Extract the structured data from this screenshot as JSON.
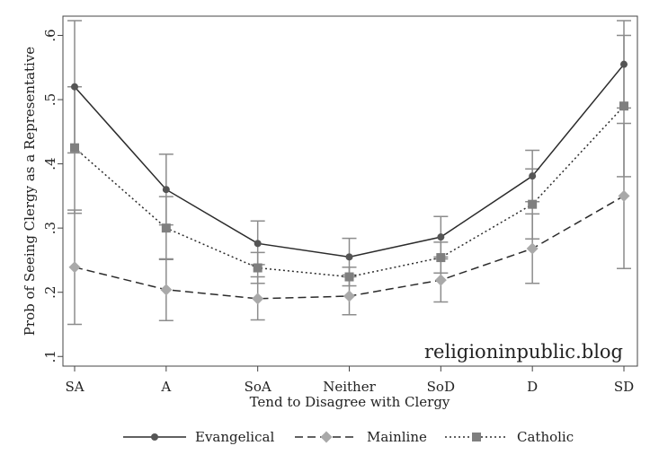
{
  "chart_data": {
    "type": "line",
    "title": "",
    "xlabel": "Tend to Disagree with Clergy",
    "ylabel": "Prob of Seeing Clergy as a Representative",
    "categories": [
      "SA",
      "A",
      "SoA",
      "Neither",
      "SoD",
      "D",
      "SD"
    ],
    "ylim": [
      0.085,
      0.63
    ],
    "yticks": [
      0.1,
      0.2,
      0.3,
      0.4,
      0.5,
      0.6
    ],
    "ytick_labels": [
      ".1",
      ".2",
      ".3",
      ".4",
      ".5",
      ".6"
    ],
    "grid": false,
    "legend_position": "bottom",
    "series": [
      {
        "name": "Evangelical",
        "line_style": "solid",
        "marker": "circle",
        "color": "#2b2b2b",
        "marker_color": "#555555",
        "values": [
          0.52,
          0.36,
          0.276,
          0.255,
          0.286,
          0.381,
          0.555
        ],
        "ci_low": [
          0.417,
          0.305,
          0.243,
          0.227,
          0.255,
          0.341,
          0.487
        ],
        "ci_high": [
          0.623,
          0.415,
          0.311,
          0.284,
          0.318,
          0.421,
          0.623
        ]
      },
      {
        "name": "Mainline",
        "line_style": "dashed",
        "marker": "diamond",
        "color": "#2b2b2b",
        "marker_color": "#a9a9a9",
        "values": [
          0.239,
          0.204,
          0.19,
          0.194,
          0.219,
          0.268,
          0.35
        ],
        "ci_low": [
          0.15,
          0.156,
          0.157,
          0.165,
          0.185,
          0.214,
          0.237
        ],
        "ci_high": [
          0.328,
          0.252,
          0.224,
          0.224,
          0.252,
          0.322,
          0.463
        ]
      },
      {
        "name": "Catholic",
        "line_style": "dotted",
        "marker": "square",
        "color": "#2b2b2b",
        "marker_color": "#7f7f7f",
        "values": [
          0.425,
          0.3,
          0.238,
          0.224,
          0.254,
          0.337,
          0.49
        ],
        "ci_low": [
          0.323,
          0.251,
          0.214,
          0.21,
          0.23,
          0.283,
          0.38
        ],
        "ci_high": [
          0.52,
          0.349,
          0.262,
          0.239,
          0.278,
          0.392,
          0.6
        ]
      }
    ],
    "ci_color": "#8c8c8c",
    "watermark": "religioninpublic.blog"
  }
}
